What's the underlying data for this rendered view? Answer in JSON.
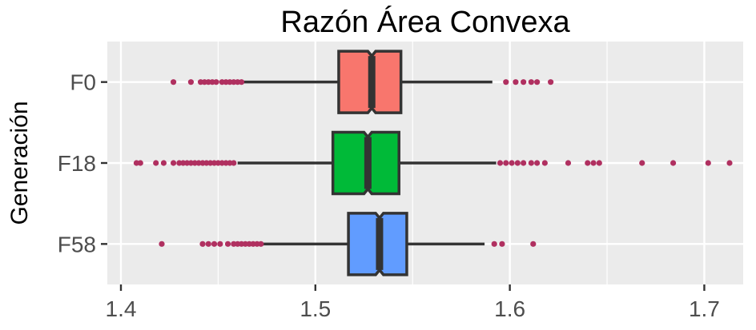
{
  "chart_data": {
    "type": "boxplot",
    "orientation": "horizontal",
    "title": "Razón Área Convexa",
    "xlabel": "",
    "ylabel": "Generación",
    "xlim": [
      1.393,
      1.72
    ],
    "xticks": [
      1.4,
      1.5,
      1.6,
      1.7
    ],
    "xtick_labels": [
      "1.4",
      "1.5",
      "1.6",
      "1.7"
    ],
    "grid": true,
    "legend": "none",
    "notched": true,
    "outlier_color": "#B03060",
    "categories": [
      "F0",
      "F18",
      "F58"
    ],
    "series": [
      {
        "category": "F0",
        "color": "#F8766D",
        "whisker_low": 1.463,
        "q1": 1.512,
        "median": 1.529,
        "q3": 1.544,
        "whisker_high": 1.591,
        "notch_low": 1.527,
        "notch_high": 1.531,
        "outliers": [
          1.427,
          1.436,
          1.441,
          1.443,
          1.445,
          1.447,
          1.449,
          1.452,
          1.454,
          1.456,
          1.458,
          1.46,
          1.462,
          1.598,
          1.603,
          1.607,
          1.611,
          1.614,
          1.621
        ]
      },
      {
        "category": "F18",
        "color": "#00BA38",
        "whisker_low": 1.46,
        "q1": 1.509,
        "median": 1.527,
        "q3": 1.543,
        "whisker_high": 1.593,
        "notch_low": 1.525,
        "notch_high": 1.529,
        "outliers": [
          1.408,
          1.41,
          1.418,
          1.422,
          1.427,
          1.43,
          1.432,
          1.434,
          1.436,
          1.438,
          1.44,
          1.442,
          1.444,
          1.446,
          1.448,
          1.45,
          1.452,
          1.454,
          1.456,
          1.458,
          1.595,
          1.598,
          1.601,
          1.604,
          1.607,
          1.611,
          1.614,
          1.618,
          1.63,
          1.64,
          1.643,
          1.646,
          1.668,
          1.684,
          1.702,
          1.713
        ]
      },
      {
        "category": "F58",
        "color": "#619CFF",
        "whisker_low": 1.473,
        "q1": 1.517,
        "median": 1.533,
        "q3": 1.547,
        "whisker_high": 1.587,
        "notch_low": 1.531,
        "notch_high": 1.535,
        "outliers": [
          1.421,
          1.442,
          1.445,
          1.448,
          1.451,
          1.455,
          1.458,
          1.46,
          1.462,
          1.464,
          1.466,
          1.468,
          1.47,
          1.472,
          1.592,
          1.596,
          1.612
        ]
      }
    ]
  }
}
